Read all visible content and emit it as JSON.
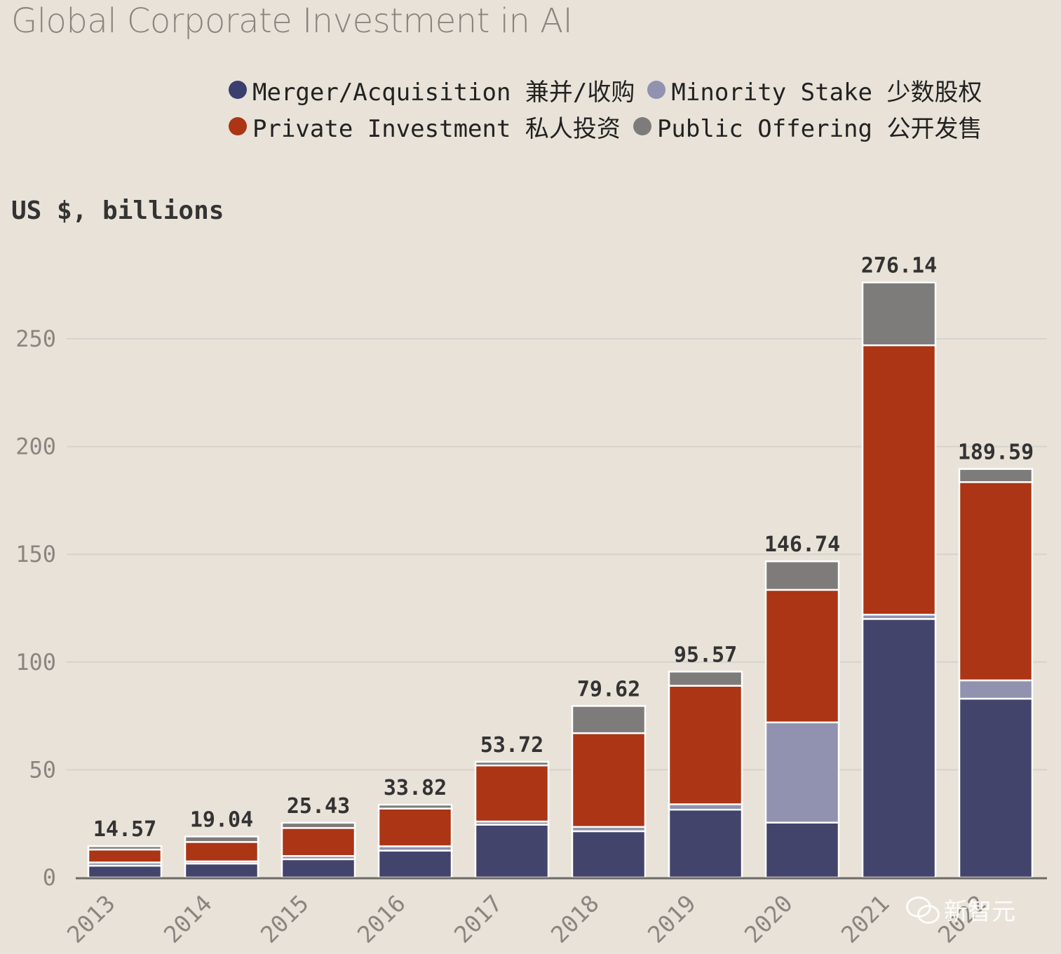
{
  "title": "Global Corporate Investment in AI",
  "unit_label": "US $, billions",
  "legend": [
    {
      "label": "Merger/Acquisition 兼并/收购",
      "color": "#3b3f6e"
    },
    {
      "label": "Minority Stake 少数股权",
      "color": "#9191b0"
    },
    {
      "label": "Private Investment 私人投资",
      "color": "#ab3515"
    },
    {
      "label": "Public Offering 公开发售",
      "color": "#7d7c7b"
    }
  ],
  "watermark": "新智元",
  "chart_data": {
    "type": "bar",
    "stacked": true,
    "categories": [
      "2013",
      "2014",
      "2015",
      "2016",
      "2017",
      "2018",
      "2019",
      "2020",
      "2021",
      "2022"
    ],
    "series": [
      {
        "name": "Merger/Acquisition",
        "color": "#42446b",
        "values": [
          5.5,
          6.5,
          8.5,
          12.5,
          24.5,
          21.5,
          31.5,
          25.5,
          120.0,
          83.0
        ]
      },
      {
        "name": "Minority Stake",
        "color": "#9191b0",
        "values": [
          1.5,
          1.0,
          1.5,
          2.0,
          1.5,
          2.0,
          2.5,
          46.5,
          2.0,
          8.5
        ]
      },
      {
        "name": "Private Investment",
        "color": "#ab3515",
        "values": [
          6.0,
          9.0,
          13.0,
          17.5,
          26.0,
          43.5,
          55.0,
          61.5,
          125.0,
          92.0
        ]
      },
      {
        "name": "Public Offering",
        "color": "#7d7c7b",
        "values": [
          1.57,
          2.54,
          2.43,
          1.82,
          1.72,
          12.62,
          6.57,
          13.24,
          29.14,
          6.09
        ]
      }
    ],
    "totals": [
      "14.57",
      "19.04",
      "25.43",
      "33.82",
      "53.72",
      "79.62",
      "95.57",
      "146.74",
      "276.14",
      "189.59"
    ],
    "ylim": [
      0,
      280
    ],
    "yticks": [
      0,
      50,
      100,
      150,
      200,
      250
    ],
    "grid": true
  }
}
